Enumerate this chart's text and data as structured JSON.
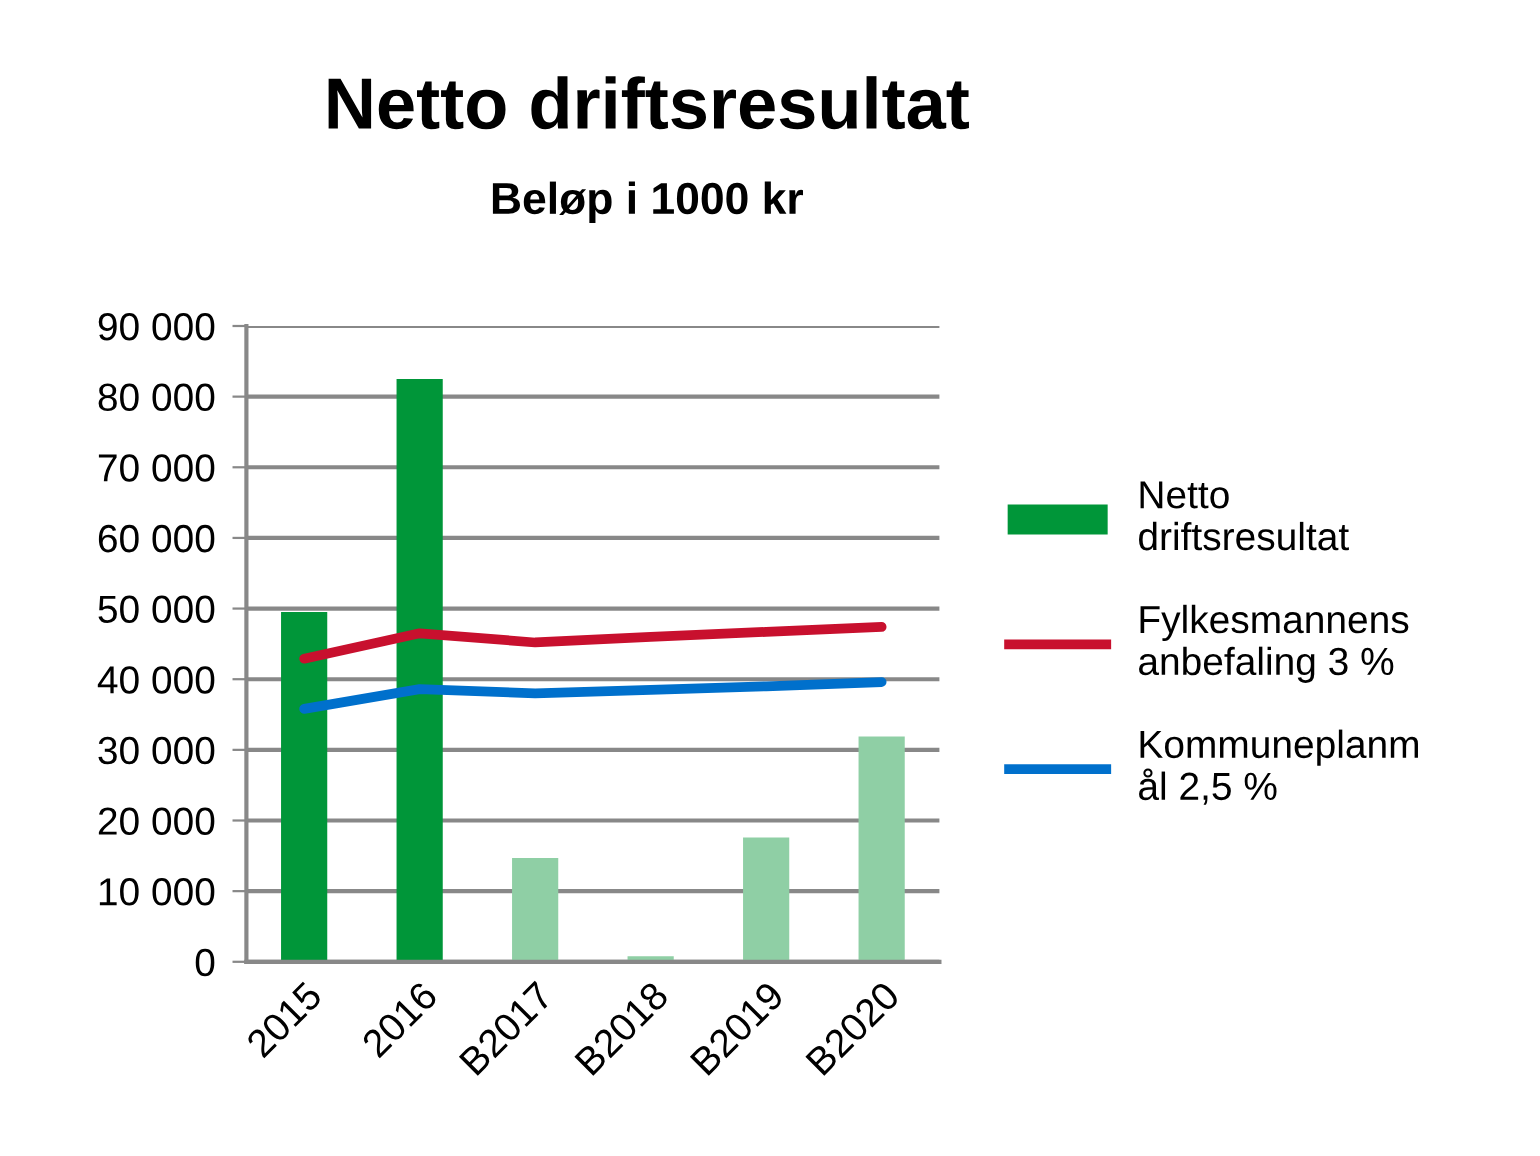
{
  "chart_data": {
    "type": "bar",
    "title": "Netto driftsresultat",
    "subtitle": "Beløp i 1000 kr",
    "categories": [
      "2015",
      "2016",
      "B2017",
      "B2018",
      "B2019",
      "B2020"
    ],
    "series": [
      {
        "name": "Netto\ndriftsresultat",
        "color": "#009639",
        "colors": [
          "#009639",
          "#009639",
          "#8fcfa5",
          "#8fcfa5",
          "#8fcfa5",
          "#8fcfa5"
        ],
        "values": [
          49500,
          82500,
          14700,
          800,
          17600,
          31900
        ]
      },
      {
        "name": "Fylkesmannens\nanbefaling 3 %",
        "type": "line",
        "color": "#c8102e",
        "values": [
          42900,
          46500,
          45200,
          46000,
          46700,
          47400
        ]
      },
      {
        "name": "Kommuneplanm\nål 2,5 %",
        "type": "line",
        "color": "#0070cc",
        "values": [
          35800,
          38600,
          38000,
          38500,
          39000,
          39600
        ]
      }
    ],
    "ylim": [
      0,
      90000
    ],
    "yticks": [
      {
        "value": 0,
        "label": "0"
      },
      {
        "value": 10000,
        "label": "10 000"
      },
      {
        "value": 20000,
        "label": "20 000"
      },
      {
        "value": 30000,
        "label": "30 000"
      },
      {
        "value": 40000,
        "label": "40 000"
      },
      {
        "value": 50000,
        "label": "50 000"
      },
      {
        "value": 60000,
        "label": "60 000"
      },
      {
        "value": 70000,
        "label": "70 000"
      },
      {
        "value": 80000,
        "label": "80 000"
      },
      {
        "value": 90000,
        "label": "90 000"
      }
    ],
    "grid": "y",
    "legend": "right",
    "marker": "none",
    "line_style": "solid"
  }
}
